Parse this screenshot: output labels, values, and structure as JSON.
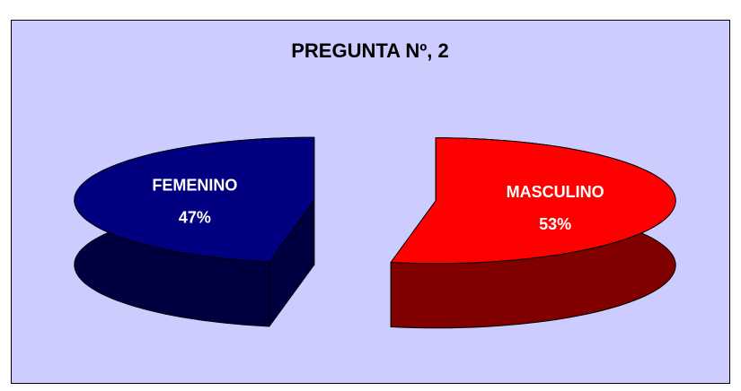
{
  "chart_data": {
    "type": "pie",
    "title": "PREGUNTA Nº, 2",
    "categories": [
      "FEMENINO",
      "MASCULINO"
    ],
    "values": [
      47,
      53
    ],
    "value_labels": [
      "47%",
      "53%"
    ],
    "colors": [
      "#000080",
      "#ff0000"
    ]
  }
}
